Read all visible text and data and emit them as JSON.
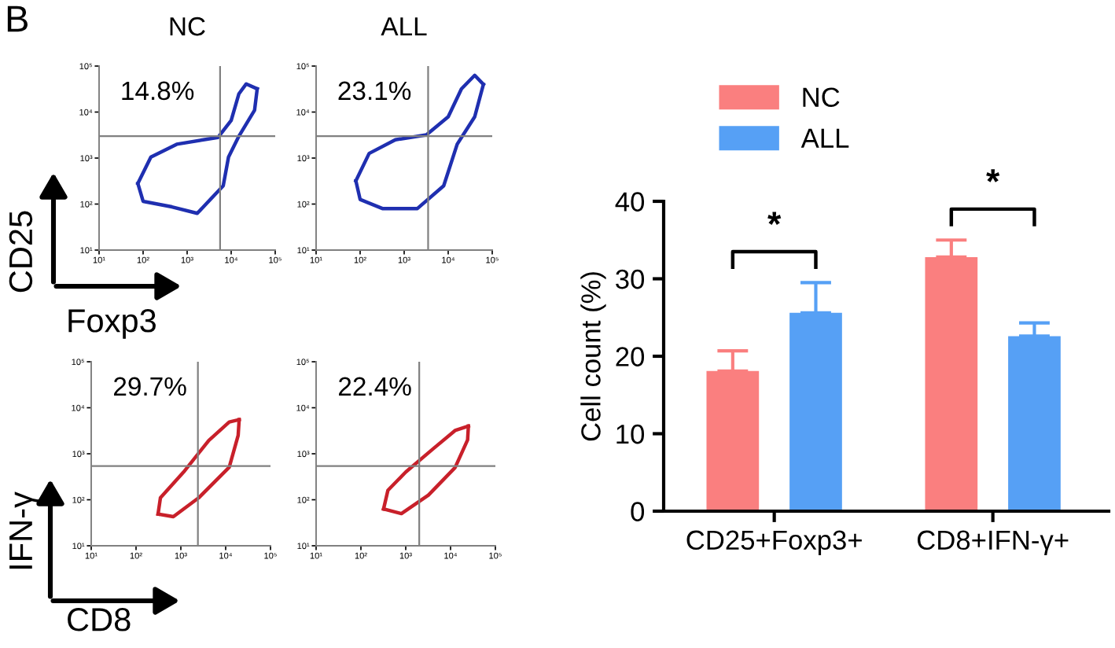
{
  "chart_data": [
    {
      "type": "line",
      "title": "NC",
      "ylabel": "CD25",
      "xlabel": "Foxp3",
      "annotations": [
        "B",
        "14.8%"
      ],
      "log": "xy",
      "xlim": [
        10,
        100000
      ],
      "ylim": [
        10,
        100000
      ],
      "xticks": [
        {
          "value": 10,
          "label": "10¹"
        },
        {
          "value": 100,
          "label": "10²"
        },
        {
          "value": 1000,
          "label": "10³"
        },
        {
          "value": 10000,
          "label": "10⁴"
        },
        {
          "value": 100000,
          "label": "10⁵"
        }
      ],
      "yticks": [
        {
          "value": 10,
          "label": "10¹"
        },
        {
          "value": 100,
          "label": "10²"
        },
        {
          "value": 1000,
          "label": "10³"
        },
        {
          "value": 10000,
          "label": "10⁴"
        },
        {
          "value": 100000,
          "label": "10⁵"
        }
      ],
      "ref_lines": [
        {
          "axis": "x",
          "value": 5600,
          "color": "#808080"
        },
        {
          "axis": "y",
          "value": 3000,
          "color": "#808080"
        }
      ],
      "series": [
        {
          "color": "#1f2fb0",
          "x": [
            76,
            150,
            580,
            3000,
            5000,
            10000,
            15000,
            22000,
            39000
          ],
          "values": [
            280,
            1050,
            2000,
            2600,
            2800,
            6600,
            25000,
            41000,
            32000
          ]
        },
        {
          "color": "#1f2fb0",
          "x": [
            76,
            100,
            450,
            1700,
            6600,
            8700,
            15000,
            34000,
            39000
          ],
          "values": [
            280,
            115,
            87,
            63,
            250,
            1050,
            3000,
            11000,
            32000
          ]
        }
      ]
    },
    {
      "type": "line",
      "title": "ALL",
      "annotations": [
        "23.1%"
      ],
      "log": "xy",
      "xlim": [
        10,
        100000
      ],
      "ylim": [
        10,
        100000
      ],
      "xticks": [
        {
          "value": 10,
          "label": "10¹"
        },
        {
          "value": 100,
          "label": "10²"
        },
        {
          "value": 1000,
          "label": "10³"
        },
        {
          "value": 10000,
          "label": "10⁴"
        },
        {
          "value": 100000,
          "label": "10⁵"
        }
      ],
      "yticks": [
        {
          "value": 10,
          "label": "10¹"
        },
        {
          "value": 100,
          "label": "10²"
        },
        {
          "value": 1000,
          "label": "10³"
        },
        {
          "value": 10000,
          "label": "10⁴"
        },
        {
          "value": 100000,
          "label": "10⁵"
        }
      ],
      "ref_lines": [
        {
          "axis": "x",
          "value": 3500,
          "color": "#808080"
        },
        {
          "axis": "y",
          "value": 3000,
          "color": "#808080"
        }
      ],
      "series": [
        {
          "color": "#1f2fb0",
          "x": [
            80,
            160,
            630,
            3200,
            10000,
            20000,
            40000,
            63000
          ],
          "values": [
            320,
            1260,
            2500,
            3200,
            7900,
            32000,
            63000,
            40000
          ]
        },
        {
          "color": "#1f2fb0",
          "x": [
            80,
            100,
            320,
            2000,
            7900,
            16000,
            40000,
            63000
          ],
          "values": [
            320,
            126,
            80,
            80,
            250,
            2000,
            7900,
            40000
          ]
        }
      ]
    },
    {
      "type": "line",
      "ylabel": "IFN-γ",
      "xlabel": "CD8",
      "annotations": [
        "29.7%"
      ],
      "log": "xy",
      "xlim": [
        10,
        100000
      ],
      "ylim": [
        10,
        100000
      ],
      "xticks": [
        {
          "value": 10,
          "label": "10¹"
        },
        {
          "value": 100,
          "label": "10²"
        },
        {
          "value": 1000,
          "label": "10³"
        },
        {
          "value": 10000,
          "label": "10⁴"
        },
        {
          "value": 100000,
          "label": "10⁵"
        }
      ],
      "yticks": [
        {
          "value": 10,
          "label": "10¹"
        },
        {
          "value": 100,
          "label": "10²"
        },
        {
          "value": 1000,
          "label": "10³"
        },
        {
          "value": 10000,
          "label": "10⁴"
        },
        {
          "value": 100000,
          "label": "10⁵"
        }
      ],
      "ref_lines": [
        {
          "axis": "x",
          "value": 2400,
          "color": "#808080"
        },
        {
          "axis": "y",
          "value": 540,
          "color": "#808080"
        }
      ],
      "series": [
        {
          "color": "#c8202a",
          "x": [
            310,
            350,
            1150,
            4200,
            12000,
            20000
          ],
          "values": [
            49,
            110,
            400,
            1950,
            4900,
            5500
          ]
        },
        {
          "color": "#c8202a",
          "x": [
            310,
            680,
            2500,
            12000,
            19000,
            20000
          ],
          "values": [
            49,
            43,
            110,
            510,
            2500,
            5500
          ]
        }
      ]
    },
    {
      "type": "line",
      "annotations": [
        "22.4%"
      ],
      "log": "xy",
      "xlim": [
        10,
        100000
      ],
      "ylim": [
        10,
        100000
      ],
      "xticks": [
        {
          "value": 10,
          "label": "10¹"
        },
        {
          "value": 100,
          "label": "10²"
        },
        {
          "value": 1000,
          "label": "10³"
        },
        {
          "value": 10000,
          "label": "10⁴"
        },
        {
          "value": 100000,
          "label": "10⁵"
        }
      ],
      "yticks": [
        {
          "value": 10,
          "label": "10¹"
        },
        {
          "value": 100,
          "label": "10²"
        },
        {
          "value": 1000,
          "label": "10³"
        },
        {
          "value": 10000,
          "label": "10⁴"
        },
        {
          "value": 100000,
          "label": "10⁵"
        }
      ],
      "ref_lines": [
        {
          "axis": "x",
          "value": 2000,
          "color": "#808080"
        },
        {
          "axis": "y",
          "value": 540,
          "color": "#808080"
        }
      ],
      "series": [
        {
          "color": "#c8202a",
          "x": [
            320,
            400,
            1000,
            4000,
            12600,
            25000
          ],
          "values": [
            63,
            160,
            400,
            1260,
            3200,
            4000
          ]
        },
        {
          "color": "#c8202a",
          "x": [
            320,
            800,
            3200,
            12600,
            24000,
            25000
          ],
          "values": [
            63,
            50,
            126,
            500,
            2000,
            4000
          ]
        }
      ]
    },
    {
      "type": "bar",
      "ylabel": "Cell count (%)",
      "categories": [
        "CD25+Foxp3+",
        "CD8+IFN-γ+"
      ],
      "ylim": [
        0,
        40
      ],
      "yticks": [
        0,
        10,
        20,
        30,
        40
      ],
      "legend": "top left",
      "annotations": [
        "*",
        "*"
      ],
      "series": [
        {
          "name": "NC",
          "color": "#fa7f7f",
          "values": [
            18.1,
            32.8
          ],
          "errors": [
            [
              18.1,
              20.7
            ],
            [
              32.8,
              35.0
            ]
          ]
        },
        {
          "name": "ALL",
          "color": "#56a0f5",
          "values": [
            25.6,
            22.6
          ],
          "errors": [
            [
              25.6,
              29.5
            ],
            [
              22.6,
              24.3
            ]
          ]
        }
      ]
    }
  ]
}
